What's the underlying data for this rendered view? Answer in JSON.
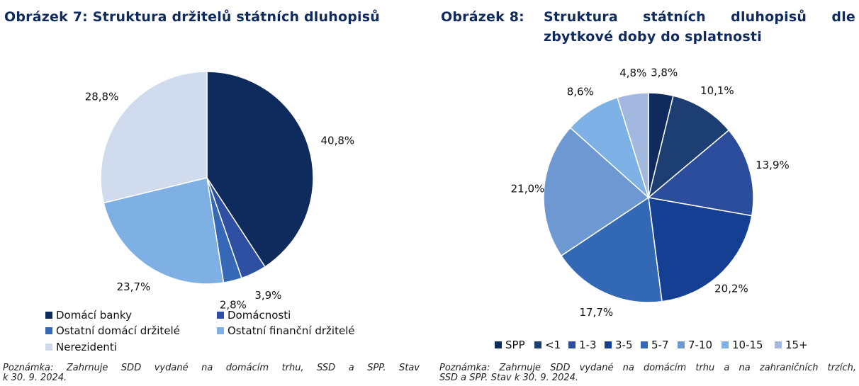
{
  "figure7": {
    "title": "Obrázek 7: Struktura držitelů státních dluhopisů",
    "note_line1": "Poznámka: Zahrnuje SDD vydané na domácím trhu, SSD a SPP. Stav",
    "note_line2": "k 30. 9. 2024."
  },
  "figure8": {
    "title_num": "Obrázek 8:",
    "title_line1": "Struktura státních dluhopisů dle",
    "title_line2": "zbytkové doby do splatnosti",
    "note_line1": "Poznámka: Zahrnuje SDD vydané na domácím trhu a na zahraničních trzích,",
    "note_line2": "SSD a SPP. Stav k 30. 9. 2024."
  },
  "chart_data": [
    {
      "type": "pie",
      "title": "Obrázek 7: Struktura držitelů státních dluhopisů",
      "labels": [
        "Domácí banky",
        "Domácnosti",
        "Ostatní domácí držitelé",
        "Ostatní finanční držitelé",
        "Nerezidenti"
      ],
      "values": [
        40.8,
        3.9,
        2.8,
        23.7,
        28.8
      ],
      "value_labels": [
        "40,8%",
        "3,9%",
        "2,8%",
        "23,7%",
        "28,8%"
      ],
      "colors": [
        "#0f2a5c",
        "#2f4fa2",
        "#3569b8",
        "#7eb0e3",
        "#d0dcee"
      ],
      "legend_position": "bottom"
    },
    {
      "type": "pie",
      "title": "Obrázek 8: Struktura státních dluhopisů dle zbytkové doby do splatnosti",
      "labels": [
        "SPP",
        "<1",
        "1-3",
        "3-5",
        "5-7",
        "7-10",
        "10-15",
        "15+"
      ],
      "values": [
        3.8,
        10.1,
        13.9,
        20.2,
        17.7,
        21.0,
        8.6,
        4.8
      ],
      "value_labels": [
        "3,8%",
        "10,1%",
        "13,9%",
        "20,2%",
        "17,7%",
        "21,0%",
        "8,6%",
        "4,8%"
      ],
      "colors": [
        "#0f2a5c",
        "#1d3e73",
        "#2c4c9c",
        "#143f92",
        "#3368b5",
        "#6e98d2",
        "#7eb2e6",
        "#a2b8de"
      ],
      "legend_position": "bottom"
    }
  ]
}
